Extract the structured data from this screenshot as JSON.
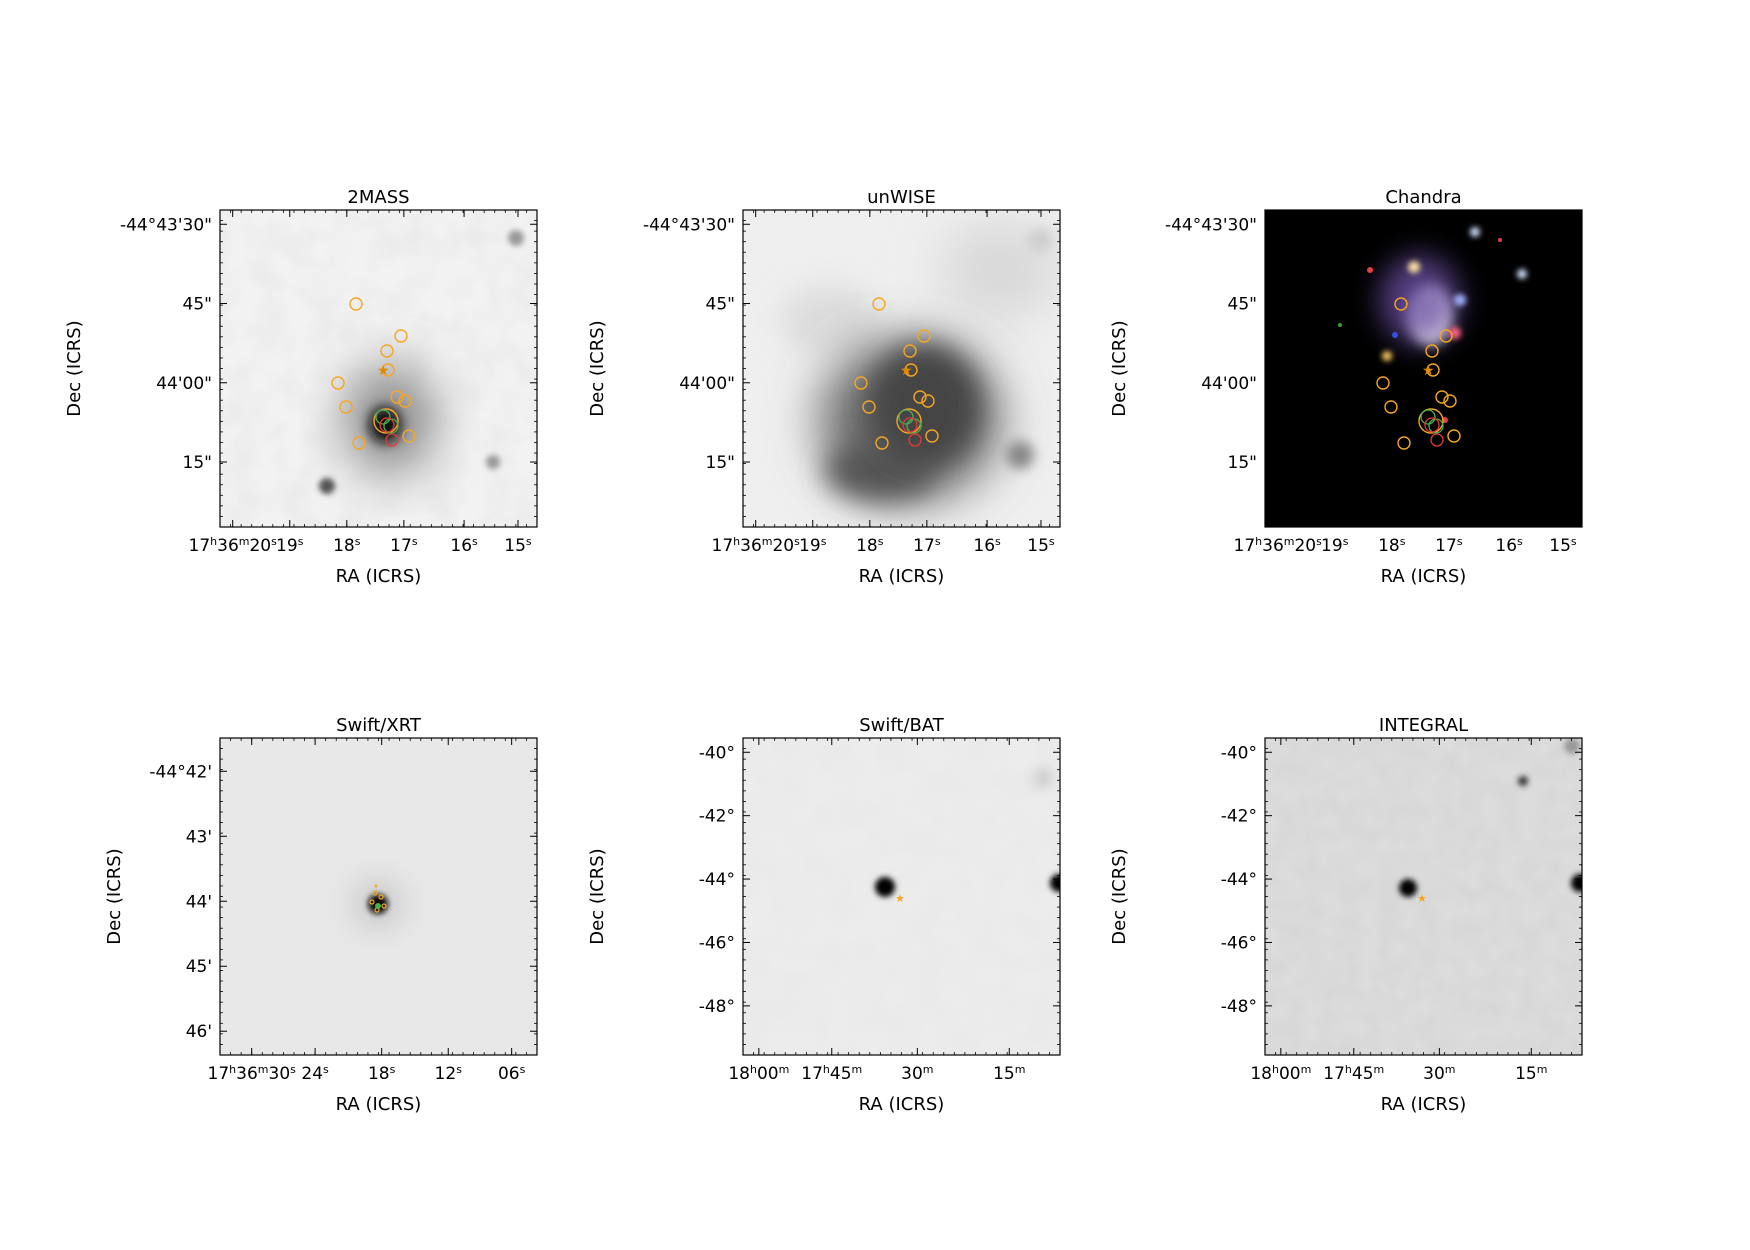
{
  "panels": [
    {
      "id": "twomass",
      "title": "2MASS",
      "style": "light",
      "ylabels": [
        "-44°43'30\"",
        "45\"",
        "44'00\"",
        "15\""
      ],
      "xlabels": [
        "17h36m20s",
        "19s",
        "18s",
        "17s",
        "16s",
        "15s"
      ],
      "xlabel": "RA (ICRS)",
      "ylabel": "Dec (ICRS)"
    },
    {
      "id": "unwise",
      "title": "unWISE",
      "style": "smooth",
      "ylabels": [
        "-44°43'30\"",
        "45\"",
        "44'00\"",
        "15\""
      ],
      "xlabels": [
        "17h36m20s",
        "19s",
        "18s",
        "17s",
        "16s",
        "15s"
      ],
      "xlabel": "RA (ICRS)",
      "ylabel": "Dec (ICRS)"
    },
    {
      "id": "chandra",
      "title": "Chandra",
      "style": "dark",
      "ylabels": [
        "-44°43'30\"",
        "45\"",
        "44'00\"",
        "15\""
      ],
      "xlabels": [
        "17h36m20s",
        "19s",
        "18s",
        "17s",
        "16s",
        "15s"
      ],
      "xlabel": "RA (ICRS)",
      "ylabel": "Dec (ICRS)"
    },
    {
      "id": "xrt",
      "title": "Swift/XRT",
      "style": "flat",
      "ylabels": [
        "-44°42'",
        "43'",
        "44'",
        "45'",
        "46'"
      ],
      "xlabels": [
        "17h36m30s",
        "24s",
        "18s",
        "12s",
        "06s"
      ],
      "xlabel": "RA (ICRS)",
      "ylabel": "Dec (ICRS)"
    },
    {
      "id": "bat",
      "title": "Swift/BAT",
      "style": "flat",
      "ylabels": [
        "-40°",
        "-42°",
        "-44°",
        "-46°",
        "-48°"
      ],
      "xlabels": [
        "18h00m",
        "17h45m",
        "30m",
        "15m"
      ],
      "xlabel": "RA (ICRS)",
      "ylabel": "Dec (ICRS)"
    },
    {
      "id": "integral",
      "title": "INTEGRAL",
      "style": "noisy",
      "ylabels": [
        "-40°",
        "-42°",
        "-44°",
        "-46°",
        "-48°"
      ],
      "xlabels": [
        "18h00m",
        "17h45m",
        "30m",
        "15m"
      ],
      "xlabel": "RA (ICRS)",
      "ylabel": "Dec (ICRS)"
    }
  ],
  "colors": {
    "marker": "#f5a623",
    "marker_dark": "#e08a00",
    "green": "#4caf50",
    "red": "#e53935"
  }
}
